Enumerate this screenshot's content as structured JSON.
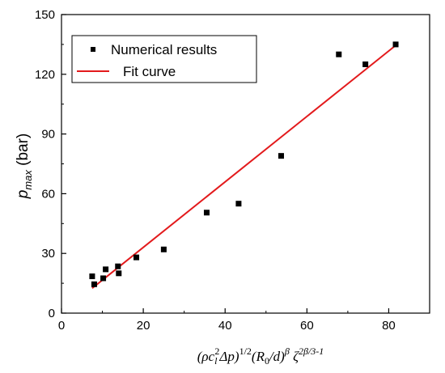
{
  "chart_data": {
    "type": "scatter",
    "xlim": [
      0,
      90
    ],
    "ylim": [
      0,
      150
    ],
    "x_ticks": [
      0,
      20,
      40,
      60,
      80
    ],
    "y_ticks": [
      0,
      30,
      60,
      90,
      120,
      150
    ],
    "ylabel": {
      "main": "p",
      "sub": "max",
      "unit": " (bar)"
    },
    "xlabel": {
      "p1": "(ρc",
      "p1_sub": "l",
      "p1_sup": "2",
      "p2": "Δp)",
      "p2_sup": "1/2",
      "p3": "(R",
      "p3_sub": "0",
      "p4": "/d)",
      "p4_sup": "β",
      "p5": " ζ",
      "p5_sup": "2β/3-1"
    },
    "series": [
      {
        "name": "Numerical results",
        "marker": "square",
        "color": "#000000",
        "points": [
          [
            7.5,
            18.5
          ],
          [
            8.0,
            14.5
          ],
          [
            10.2,
            17.5
          ],
          [
            10.8,
            22.0
          ],
          [
            13.8,
            23.5
          ],
          [
            14.0,
            20.0
          ],
          [
            18.3,
            28.0
          ],
          [
            25.0,
            32.0
          ],
          [
            35.5,
            50.5
          ],
          [
            43.3,
            55.0
          ],
          [
            53.7,
            79.0
          ],
          [
            67.8,
            130.0
          ],
          [
            74.3,
            125.0
          ],
          [
            81.7,
            135.0
          ]
        ]
      },
      {
        "name": "Fit curve",
        "type": "line",
        "color": "#e31a1c",
        "points": [
          [
            7.5,
            12.5
          ],
          [
            81.7,
            134.5
          ]
        ]
      }
    ],
    "legend": {
      "position": "top-left",
      "items": [
        {
          "label": "Numerical results",
          "kind": "marker"
        },
        {
          "label": "Fit curve",
          "kind": "line"
        }
      ]
    }
  }
}
